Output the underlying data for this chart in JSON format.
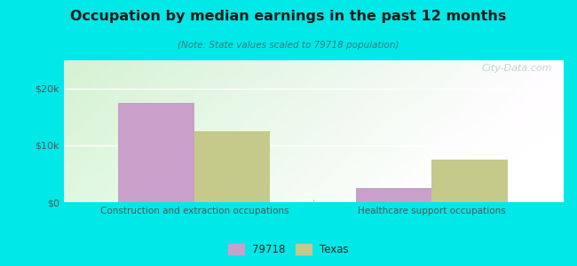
{
  "title": "Occupation by median earnings in the past 12 months",
  "subtitle": "(Note: State values scaled to 79718 population)",
  "categories": [
    "Construction and extraction occupations",
    "Healthcare support occupations"
  ],
  "city_values": [
    17500,
    2500
  ],
  "state_values": [
    12500,
    7500
  ],
  "city_label": "79718",
  "state_label": "Texas",
  "city_color": "#c9a0c9",
  "state_color": "#c5c98a",
  "bg_outer": "#00e8e8",
  "ylim": [
    0,
    25000
  ],
  "yticks": [
    0,
    10000,
    20000
  ],
  "ytick_labels": [
    "$0",
    "$10k",
    "$20k"
  ],
  "bar_width": 0.32,
  "watermark": "City-Data.com",
  "title_color": "#1a1a1a",
  "subtitle_color": "#3a7a7a",
  "tick_label_color": "#555555"
}
